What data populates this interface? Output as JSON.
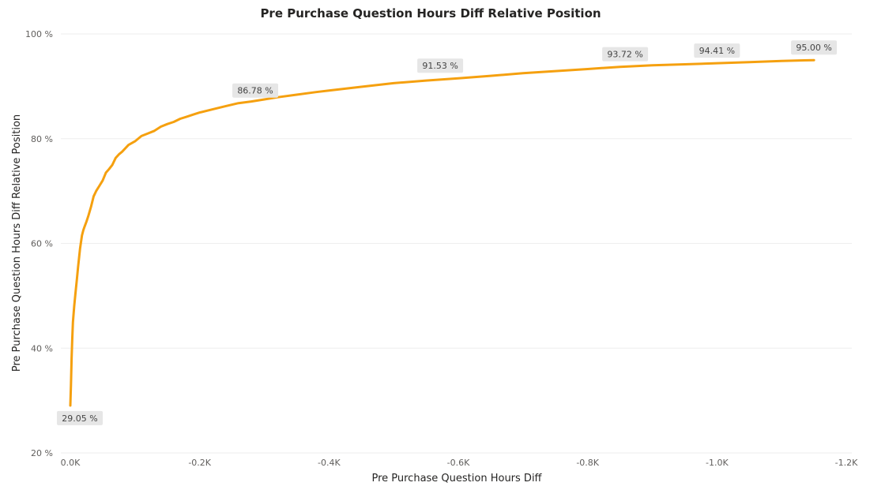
{
  "chart_data": {
    "type": "line",
    "title": "Pre Purchase Question Hours Diff Relative Position",
    "xlabel": "Pre Purchase Question Hours Diff",
    "ylabel": "Pre Purchase Question Hours Diff Relative Position",
    "xlim": [
      0,
      -1200
    ],
    "ylim": [
      20,
      100
    ],
    "x_ticks": [
      {
        "value": 0,
        "label": "0.0K"
      },
      {
        "value": -200,
        "label": "-0.2K"
      },
      {
        "value": -400,
        "label": "-0.4K"
      },
      {
        "value": -600,
        "label": "-0.6K"
      },
      {
        "value": -800,
        "label": "-0.8K"
      },
      {
        "value": -1000,
        "label": "-1.0K"
      },
      {
        "value": -1200,
        "label": "-1.2K"
      }
    ],
    "y_ticks": [
      {
        "value": 20,
        "label": "20 %"
      },
      {
        "value": 40,
        "label": "40 %"
      },
      {
        "value": 60,
        "label": "60 %"
      },
      {
        "value": 80,
        "label": "80 %"
      },
      {
        "value": 100,
        "label": "100 %"
      }
    ],
    "grid": true,
    "line_color": "#f5a00f",
    "series": [
      {
        "x": [
          0,
          -1,
          -2,
          -3,
          -4,
          -6,
          -8,
          -10,
          -12,
          -15,
          -18,
          -20,
          -22,
          -25,
          -28,
          -32,
          -36,
          -40,
          -45,
          -50,
          -55,
          -60,
          -65,
          -70,
          -75,
          -80,
          -90,
          -100,
          -110,
          -120,
          -130,
          -140,
          -150,
          -160,
          -170,
          -180,
          -190,
          -200,
          -220,
          -240,
          -260,
          -280,
          -300,
          -320,
          -350,
          -380,
          -400,
          -450,
          -500,
          -550,
          -600,
          -650,
          -700,
          -750,
          -800,
          -850,
          -900,
          -950,
          -1000,
          -1050,
          -1100,
          -1150
        ],
        "y": [
          29.05,
          33,
          38,
          42,
          45,
          48,
          50.5,
          53,
          55.5,
          59,
          61.5,
          62.5,
          63.2,
          64.2,
          65.3,
          67,
          69,
          70,
          71,
          72,
          73.5,
          74.2,
          75,
          76.3,
          77,
          77.5,
          78.8,
          79.5,
          80.5,
          81,
          81.5,
          82.3,
          82.8,
          83.2,
          83.8,
          84.2,
          84.6,
          85,
          85.6,
          86.2,
          86.78,
          87.1,
          87.5,
          87.9,
          88.4,
          88.9,
          89.2,
          89.9,
          90.6,
          91.1,
          91.53,
          92,
          92.5,
          92.9,
          93.3,
          93.72,
          94,
          94.2,
          94.41,
          94.6,
          94.85,
          95.0
        ]
      }
    ],
    "data_labels": [
      {
        "x": 0,
        "y": 29.05,
        "text": "29.05 %",
        "position": "below"
      },
      {
        "x": -286,
        "y": 86.78,
        "text": "86.78 %",
        "position": "above"
      },
      {
        "x": -572,
        "y": 91.53,
        "text": "91.53 %",
        "position": "above"
      },
      {
        "x": -858,
        "y": 93.72,
        "text": "93.72 %",
        "position": "above"
      },
      {
        "x": -1000,
        "y": 94.41,
        "text": "94.41 %",
        "position": "above"
      },
      {
        "x": -1150,
        "y": 95.0,
        "text": "95.00 %",
        "position": "above"
      }
    ]
  }
}
